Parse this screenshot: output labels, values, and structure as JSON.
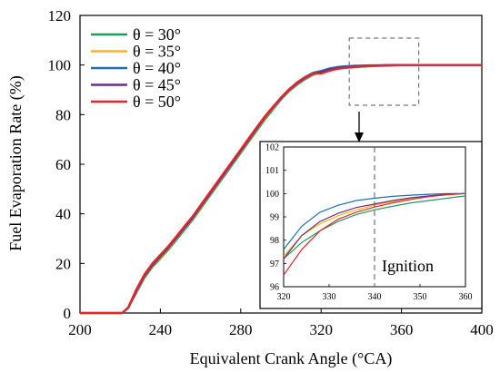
{
  "chart_data": {
    "type": "line",
    "xlabel": "Equivalent Crank Angle (°CA)",
    "ylabel": "Fuel Evaporation Rate (%)",
    "xlim": [
      200,
      400
    ],
    "ylim": [
      0,
      120
    ],
    "xticks": [
      "200",
      "240",
      "280",
      "320",
      "360",
      "400"
    ],
    "yticks": [
      "0",
      "20",
      "40",
      "60",
      "80",
      "100",
      "120"
    ],
    "grid": false,
    "legend_position": "top-left",
    "series": [
      {
        "name": "θ = 30°",
        "color": "#1a9e5c",
        "x": [
          200,
          221,
          224,
          228,
          232,
          236,
          240,
          244,
          248,
          252,
          256,
          260,
          264,
          268,
          272,
          276,
          280,
          284,
          288,
          292,
          296,
          300,
          304,
          308,
          312,
          316,
          320,
          324,
          328,
          332,
          336,
          340,
          344,
          348,
          352,
          356,
          360,
          370,
          380,
          390,
          400
        ],
        "y": [
          0,
          0,
          2,
          8,
          14,
          18.5,
          22,
          25.5,
          29.5,
          33.5,
          37.5,
          42,
          46.5,
          51,
          55.5,
          60,
          64.5,
          69,
          73.5,
          78,
          82,
          86,
          89.3,
          92,
          94.2,
          96,
          97.2,
          97.9,
          98.4,
          98.8,
          99.1,
          99.3,
          99.45,
          99.6,
          99.7,
          99.8,
          99.9,
          100,
          100,
          100,
          100
        ]
      },
      {
        "name": "θ = 35°",
        "color": "#f5b90f",
        "x": [
          200,
          221,
          224,
          228,
          232,
          236,
          240,
          244,
          248,
          252,
          256,
          260,
          264,
          268,
          272,
          276,
          280,
          284,
          288,
          292,
          296,
          300,
          304,
          308,
          312,
          316,
          320,
          324,
          328,
          332,
          336,
          340,
          344,
          348,
          352,
          356,
          360,
          370,
          380,
          390,
          400
        ],
        "y": [
          0,
          0,
          2,
          8.5,
          14.5,
          19,
          22.5,
          26,
          30,
          34,
          38,
          42.5,
          47,
          51.5,
          56,
          60.5,
          65,
          69.5,
          74,
          78.5,
          82.5,
          86.3,
          89.6,
          92.3,
          94.5,
          96.2,
          97.3,
          98.2,
          98.7,
          99.05,
          99.3,
          99.5,
          99.65,
          99.8,
          99.9,
          99.95,
          100,
          100,
          100,
          100,
          100
        ]
      },
      {
        "name": "θ = 40°",
        "color": "#1f6fb5",
        "x": [
          200,
          221,
          224,
          228,
          232,
          236,
          240,
          244,
          248,
          252,
          256,
          260,
          264,
          268,
          272,
          276,
          280,
          284,
          288,
          292,
          296,
          300,
          304,
          308,
          312,
          316,
          320,
          324,
          328,
          332,
          336,
          340,
          344,
          348,
          352,
          356,
          360,
          370,
          380,
          390,
          400
        ],
        "y": [
          0,
          0,
          2.2,
          9,
          15,
          19.5,
          23,
          26.5,
          30.5,
          34.5,
          38.5,
          43,
          47.5,
          52,
          56.5,
          61,
          65.5,
          70,
          74.5,
          79,
          83,
          86.8,
          90.2,
          93,
          95.2,
          96.9,
          97.6,
          98.6,
          99.2,
          99.5,
          99.7,
          99.8,
          99.88,
          99.93,
          99.97,
          100,
          100,
          100,
          100,
          100,
          100
        ]
      },
      {
        "name": "θ = 45°",
        "color": "#6a2c91",
        "x": [
          200,
          221,
          224,
          228,
          232,
          236,
          240,
          244,
          248,
          252,
          256,
          260,
          264,
          268,
          272,
          276,
          280,
          284,
          288,
          292,
          296,
          300,
          304,
          308,
          312,
          316,
          320,
          324,
          328,
          332,
          336,
          340,
          344,
          348,
          352,
          356,
          360,
          370,
          380,
          390,
          400
        ],
        "y": [
          0,
          0,
          2.1,
          8.8,
          14.8,
          19.2,
          22.8,
          26.3,
          30.3,
          34.3,
          38.3,
          42.8,
          47.3,
          51.8,
          56.3,
          60.8,
          65.3,
          69.8,
          74.3,
          78.8,
          82.8,
          86.5,
          89.8,
          92.5,
          94.7,
          96.4,
          97.2,
          98.2,
          98.8,
          99.15,
          99.4,
          99.55,
          99.7,
          99.82,
          99.9,
          99.97,
          100,
          100,
          100,
          100,
          100
        ]
      },
      {
        "name": "θ = 50°",
        "color": "#e8262a",
        "x": [
          200,
          221,
          224,
          228,
          232,
          236,
          240,
          244,
          248,
          252,
          256,
          260,
          264,
          268,
          272,
          276,
          280,
          284,
          288,
          292,
          296,
          300,
          304,
          308,
          312,
          316,
          320,
          324,
          328,
          332,
          336,
          340,
          344,
          348,
          352,
          356,
          360,
          370,
          380,
          390,
          400
        ],
        "y": [
          0,
          0,
          2.3,
          9.5,
          15.5,
          20,
          23.5,
          27,
          31,
          35,
          39,
          43.5,
          48,
          52.5,
          57,
          61.5,
          66,
          70.5,
          75,
          79.3,
          83.2,
          86.9,
          90.2,
          92.9,
          95,
          96.6,
          96.5,
          97.6,
          98.4,
          98.9,
          99.2,
          99.42,
          99.6,
          99.75,
          99.87,
          99.95,
          100,
          100,
          100,
          100,
          100
        ]
      }
    ],
    "inset": {
      "xlim": [
        320,
        360
      ],
      "ylim": [
        96,
        102
      ],
      "xticks": [
        "320",
        "330",
        "340",
        "350",
        "360"
      ],
      "yticks": [
        "96",
        "97",
        "98",
        "99",
        "100",
        "101",
        "102"
      ],
      "vline_x": 340,
      "vline_label": "Ignition"
    }
  }
}
